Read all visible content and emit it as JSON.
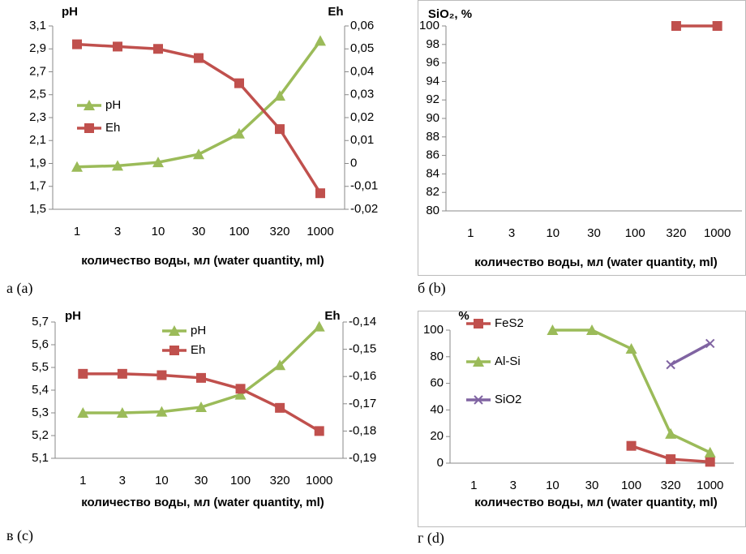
{
  "chart_data": [
    {
      "type": "line",
      "caption": "а (a)",
      "y_label": "pH",
      "y2_label": "Eh",
      "x_label": "количество воды, мл (water quantity, ml)",
      "categories": [
        "1",
        "3",
        "10",
        "30",
        "100",
        "320",
        "1000"
      ],
      "ylim": [
        1.5,
        3.1
      ],
      "yticks": [
        {
          "value": 1.5,
          "label": "1,5"
        },
        {
          "value": 1.7,
          "label": "1,7"
        },
        {
          "value": 1.9,
          "label": "1,9"
        },
        {
          "value": 2.1,
          "label": "2,1"
        },
        {
          "value": 2.3,
          "label": "2,3"
        },
        {
          "value": 2.5,
          "label": "2,5"
        },
        {
          "value": 2.7,
          "label": "2,7"
        },
        {
          "value": 2.9,
          "label": "2,9"
        },
        {
          "value": 3.1,
          "label": "3,1"
        }
      ],
      "y2lim": [
        -0.02,
        0.06
      ],
      "y2ticks": [
        {
          "value": -0.02,
          "label": "-0,02"
        },
        {
          "value": -0.01,
          "label": "-0,01"
        },
        0,
        {
          "value": 0.01,
          "label": "0,01"
        },
        {
          "value": 0.02,
          "label": "0,02"
        },
        {
          "value": 0.03,
          "label": "0,03"
        },
        {
          "value": 0.04,
          "label": "0,04"
        },
        {
          "value": 0.05,
          "label": "0,05"
        },
        {
          "value": 0.06,
          "label": "0,06"
        }
      ],
      "legend": "left",
      "series": [
        {
          "name": "pH",
          "color": "#9bbb59",
          "marker": "triangle",
          "values": [
            1.87,
            1.88,
            1.91,
            1.98,
            2.16,
            2.49,
            2.97
          ]
        },
        {
          "name": "Eh",
          "color": "#c0504d",
          "marker": "square",
          "axis": "y2",
          "values": [
            0.052,
            0.051,
            0.05,
            0.046,
            0.035,
            0.015,
            -0.013
          ]
        }
      ]
    },
    {
      "type": "line",
      "caption": "б (b)",
      "y_label": "SiO₂, %",
      "x_label": "количество воды, мл (water quantity, ml)",
      "categories": [
        "1",
        "3",
        "10",
        "30",
        "100",
        "320",
        "1000"
      ],
      "ylim": [
        80,
        100
      ],
      "yticks": [
        80,
        82,
        84,
        86,
        88,
        90,
        92,
        94,
        96,
        98,
        100
      ],
      "series": [
        {
          "color": "#c0504d",
          "marker": "square",
          "values": [
            null,
            null,
            null,
            null,
            null,
            100,
            100
          ]
        }
      ]
    },
    {
      "type": "line",
      "caption": "в (c)",
      "y_label": "pH",
      "y2_label": "Eh",
      "x_label": "количество воды, мл (water quantity, ml)",
      "categories": [
        "1",
        "3",
        "10",
        "30",
        "100",
        "320",
        "1000"
      ],
      "ylim": [
        5.1,
        5.7
      ],
      "yticks": [
        {
          "value": 5.1,
          "label": "5,1"
        },
        {
          "value": 5.2,
          "label": "5,2"
        },
        {
          "value": 5.3,
          "label": "5,3"
        },
        {
          "value": 5.4,
          "label": "5,4"
        },
        {
          "value": 5.5,
          "label": "5,5"
        },
        {
          "value": 5.6,
          "label": "5,6"
        },
        {
          "value": 5.7,
          "label": "5,7"
        }
      ],
      "y2lim": [
        -0.19,
        -0.14
      ],
      "y2ticks": [
        {
          "value": -0.19,
          "label": "-0,19"
        },
        {
          "value": -0.18,
          "label": "-0,18"
        },
        {
          "value": -0.17,
          "label": "-0,17"
        },
        {
          "value": -0.16,
          "label": "-0,16"
        },
        {
          "value": -0.15,
          "label": "-0,15"
        },
        {
          "value": -0.14,
          "label": "-0,14"
        }
      ],
      "legend": "top",
      "series": [
        {
          "name": "pH",
          "color": "#9bbb59",
          "marker": "triangle",
          "values": [
            5.3,
            5.3,
            5.305,
            5.325,
            5.38,
            5.51,
            5.68
          ]
        },
        {
          "name": "Eh",
          "color": "#c0504d",
          "marker": "square",
          "axis": "y2",
          "values": [
            -0.159,
            -0.159,
            -0.1595,
            -0.1605,
            -0.1645,
            -0.1715,
            -0.18
          ]
        }
      ]
    },
    {
      "type": "line",
      "caption": "г (d)",
      "y_label": "%",
      "x_label": "количество воды, мл (water quantity, ml)",
      "categories": [
        "1",
        "3",
        "10",
        "30",
        "100",
        "320",
        "1000"
      ],
      "ylim": [
        0,
        100
      ],
      "yticks": [
        0,
        20,
        40,
        60,
        80,
        100
      ],
      "legend": "left",
      "series": [
        {
          "name": "FeS2",
          "color": "#c0504d",
          "marker": "square",
          "values": [
            null,
            null,
            null,
            null,
            13,
            3,
            1
          ]
        },
        {
          "name": "Al-Si",
          "color": "#9bbb59",
          "marker": "triangle",
          "values": [
            null,
            null,
            100,
            100,
            86,
            22,
            8
          ]
        },
        {
          "name": "SiO2",
          "color": "#8064a2",
          "marker": "x",
          "values": [
            null,
            null,
            null,
            null,
            null,
            74,
            90
          ]
        }
      ]
    }
  ]
}
